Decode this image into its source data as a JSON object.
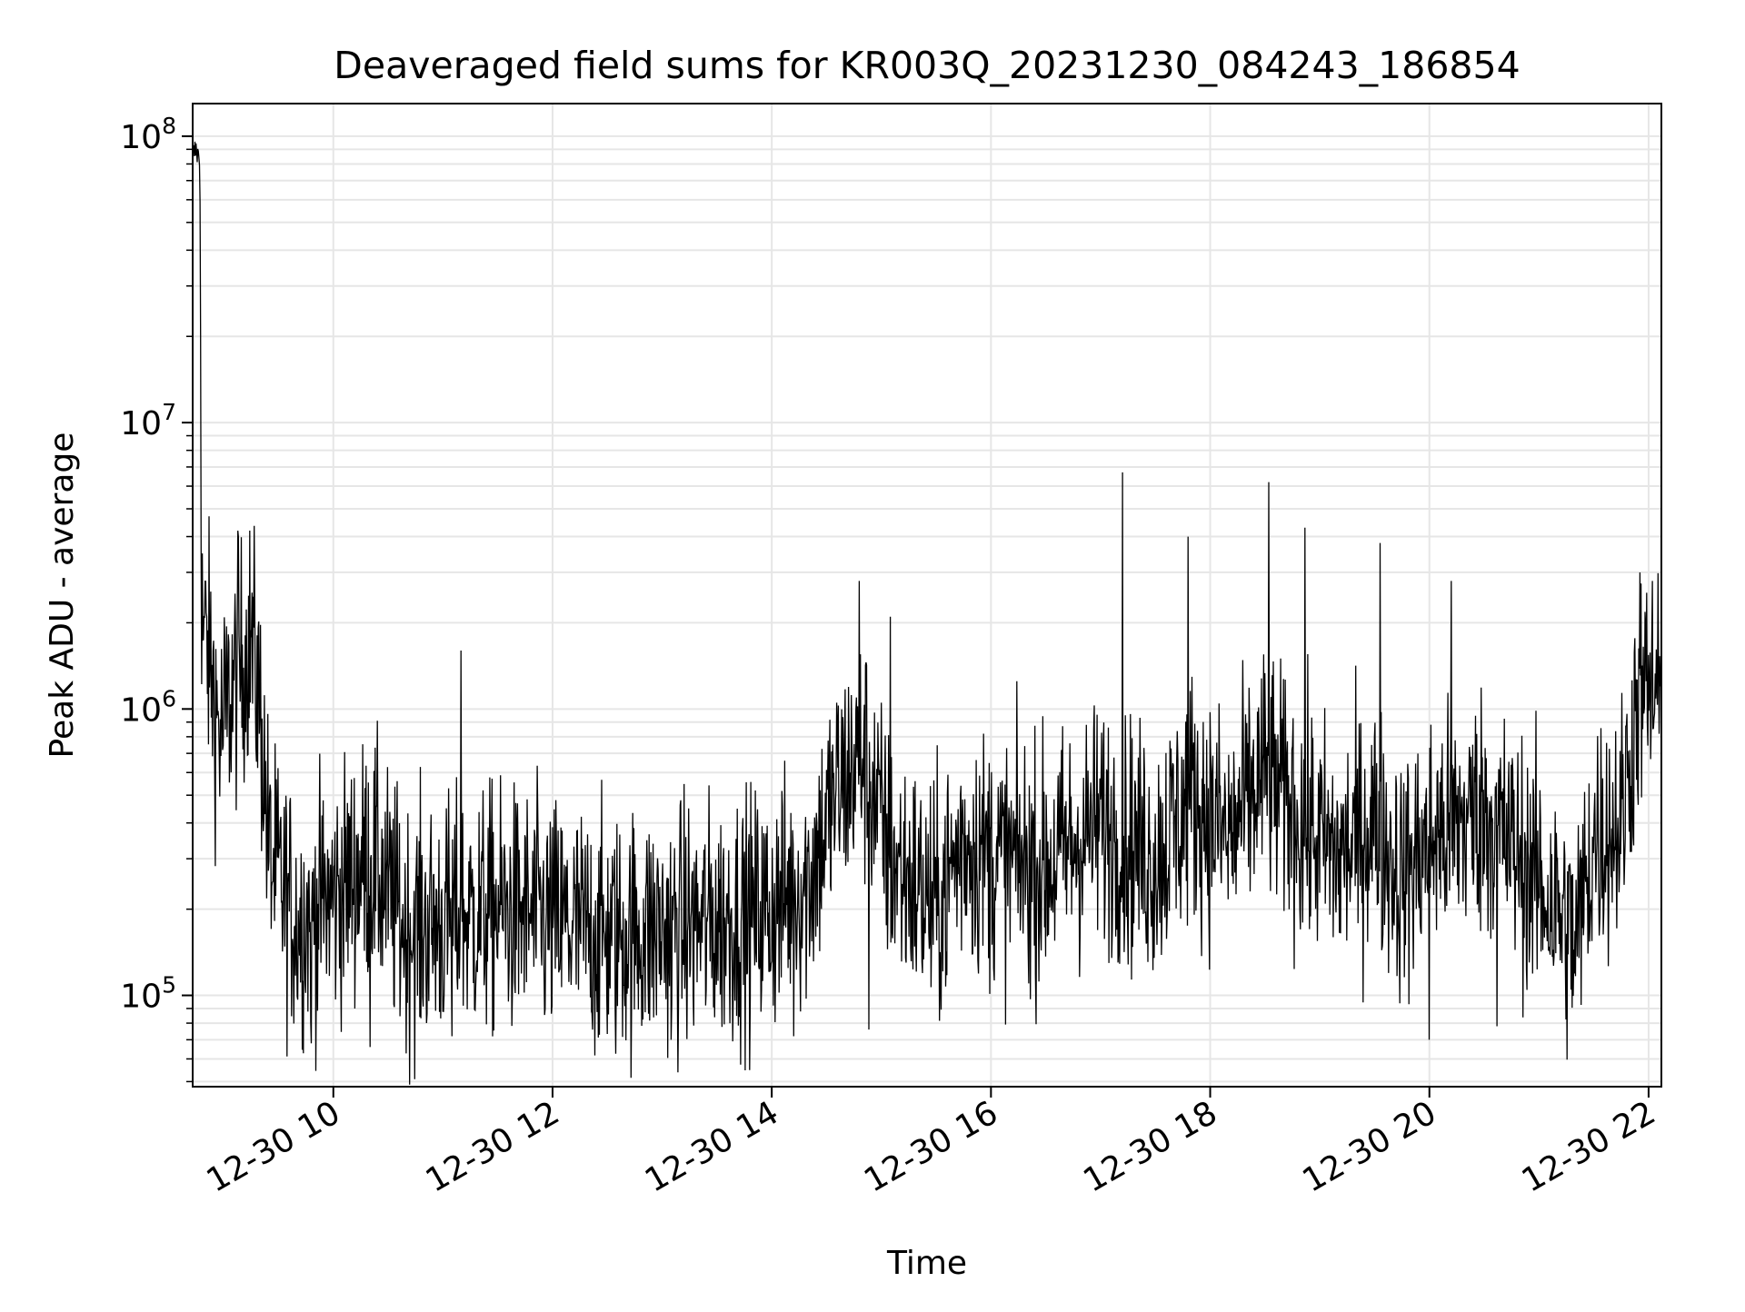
{
  "chart_data": {
    "type": "line",
    "title": "Deaveraged field sums for KR003Q_20231230_084243_186854",
    "xlabel": "Time",
    "ylabel": "Peak ADU - average",
    "yscale": "log",
    "ylim": [
      48000,
      130000000
    ],
    "xlim": [
      "2023-12-30 08:43",
      "2023-12-30 22:07"
    ],
    "grid": true,
    "grid_minor": true,
    "line_color": "#000000",
    "grid_color": "#e6e6e6",
    "x_ticks": [
      {
        "value": "2023-12-30 10:00",
        "label": "12-30 10"
      },
      {
        "value": "2023-12-30 12:00",
        "label": "12-30 12"
      },
      {
        "value": "2023-12-30 14:00",
        "label": "12-30 14"
      },
      {
        "value": "2023-12-30 16:00",
        "label": "12-30 16"
      },
      {
        "value": "2023-12-30 18:00",
        "label": "12-30 18"
      },
      {
        "value": "2023-12-30 20:00",
        "label": "12-30 20"
      },
      {
        "value": "2023-12-30 22:00",
        "label": "12-30 22"
      }
    ],
    "y_ticks": [
      {
        "value": 100000,
        "base": "10",
        "exp": "5"
      },
      {
        "value": 1000000,
        "base": "10",
        "exp": "6"
      },
      {
        "value": 10000000,
        "base": "10",
        "exp": "7"
      },
      {
        "value": 100000000,
        "base": "10",
        "exp": "8"
      }
    ],
    "series": [
      {
        "points": [
          [
            "2023-12-30 08:43",
            85000000
          ],
          [
            "2023-12-30 08:45",
            90000000
          ],
          [
            "2023-12-30 08:47",
            80000000
          ],
          [
            "2023-12-30 08:48",
            2000000
          ],
          [
            "2023-12-30 08:52",
            1500000
          ],
          [
            "2023-12-30 08:58",
            800000
          ],
          [
            "2023-12-30 09:05",
            1200000
          ],
          [
            "2023-12-30 09:15",
            1800000
          ],
          [
            "2023-12-30 09:20",
            1000000
          ],
          [
            "2023-12-30 09:25",
            300000
          ],
          [
            "2023-12-30 09:40",
            180000
          ],
          [
            "2023-12-30 10:00",
            220000
          ],
          [
            "2023-12-30 10:20",
            300000
          ],
          [
            "2023-12-30 10:40",
            170000
          ],
          [
            "2023-12-30 11:00",
            180000
          ],
          [
            "2023-12-30 11:30",
            200000
          ],
          [
            "2023-12-30 12:00",
            180000
          ],
          [
            "2023-12-30 12:30",
            160000
          ],
          [
            "2023-12-30 13:00",
            170000
          ],
          [
            "2023-12-30 13:30",
            180000
          ],
          [
            "2023-12-30 14:00",
            200000
          ],
          [
            "2023-12-30 14:20",
            250000
          ],
          [
            "2023-12-30 14:35",
            500000
          ],
          [
            "2023-12-30 14:50",
            700000
          ],
          [
            "2023-12-30 15:05",
            300000
          ],
          [
            "2023-12-30 15:30",
            200000
          ],
          [
            "2023-12-30 15:45",
            350000
          ],
          [
            "2023-12-30 16:00",
            300000
          ],
          [
            "2023-12-30 16:30",
            280000
          ],
          [
            "2023-12-30 17:00",
            400000
          ],
          [
            "2023-12-30 17:30",
            300000
          ],
          [
            "2023-12-30 17:50",
            500000
          ],
          [
            "2023-12-30 18:10",
            350000
          ],
          [
            "2023-12-30 18:30",
            600000
          ],
          [
            "2023-12-30 18:50",
            400000
          ],
          [
            "2023-12-30 19:10",
            300000
          ],
          [
            "2023-12-30 19:30",
            400000
          ],
          [
            "2023-12-30 19:45",
            250000
          ],
          [
            "2023-12-30 20:00",
            350000
          ],
          [
            "2023-12-30 20:30",
            450000
          ],
          [
            "2023-12-30 20:50",
            300000
          ],
          [
            "2023-12-30 21:10",
            200000
          ],
          [
            "2023-12-30 21:20",
            150000
          ],
          [
            "2023-12-30 21:30",
            350000
          ],
          [
            "2023-12-30 21:45",
            400000
          ],
          [
            "2023-12-30 21:55",
            1200000
          ],
          [
            "2023-12-30 22:05",
            1000000
          ]
        ],
        "peaks": [
          [
            "2023-12-30 09:08",
            4000000
          ],
          [
            "2023-12-30 11:10",
            1600000
          ],
          [
            "2023-12-30 14:48",
            2800000
          ],
          [
            "2023-12-30 15:05",
            2100000
          ],
          [
            "2023-12-30 17:12",
            6700000
          ],
          [
            "2023-12-30 17:48",
            4000000
          ],
          [
            "2023-12-30 18:32",
            6200000
          ],
          [
            "2023-12-30 18:52",
            4300000
          ],
          [
            "2023-12-30 19:33",
            3800000
          ],
          [
            "2023-12-30 20:12",
            2800000
          ],
          [
            "2023-12-30 22:02",
            2800000
          ]
        ],
        "troughs": [
          [
            "2023-12-30 09:48",
            68000
          ],
          [
            "2023-12-30 10:20",
            66000
          ],
          [
            "2023-12-30 11:05",
            72000
          ],
          [
            "2023-12-30 13:05",
            70000
          ],
          [
            "2023-12-30 14:12",
            72000
          ],
          [
            "2023-12-30 14:53",
            76000
          ],
          [
            "2023-12-30 20:00",
            70000
          ],
          [
            "2023-12-30 20:37",
            78000
          ]
        ]
      }
    ]
  }
}
